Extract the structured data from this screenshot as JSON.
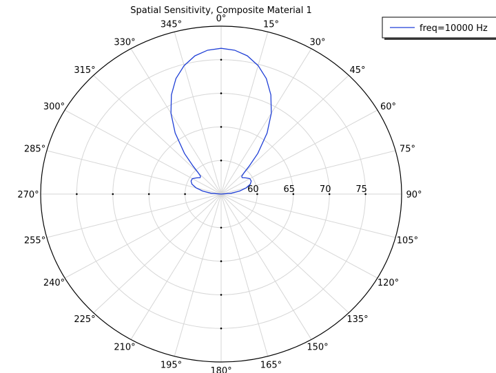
{
  "chart_data": {
    "type": "polar",
    "title": "Spatial Sensitivity, Composite Material 1",
    "angle_unit": "degrees",
    "angle_zero": "top",
    "angle_direction": "clockwise",
    "angle_ticks": [
      0,
      15,
      30,
      45,
      60,
      75,
      90,
      105,
      120,
      135,
      150,
      165,
      180,
      195,
      210,
      225,
      240,
      255,
      270,
      285,
      300,
      315,
      330,
      345
    ],
    "angle_tick_labels": [
      "0°",
      "15°",
      "30°",
      "45°",
      "60°",
      "75°",
      "90°",
      "105°",
      "120°",
      "135°",
      "150°",
      "165°",
      "180°",
      "195°",
      "210°",
      "225°",
      "240°",
      "255°",
      "270°",
      "285°",
      "300°",
      "315°",
      "330°",
      "345°"
    ],
    "radial_range": [
      55,
      80
    ],
    "radial_ticks": [
      60,
      65,
      70,
      75
    ],
    "radial_tick_labels": [
      "60",
      "65",
      "70",
      "75"
    ],
    "grid": true,
    "legend_position": "top-right",
    "series": [
      {
        "name": "freq=10000 Hz",
        "color": "#1f3fd6",
        "theta": [
          0,
          5,
          10,
          15,
          20,
          25,
          30,
          35,
          40,
          43,
          45,
          47,
          50,
          55,
          60,
          65,
          70,
          75,
          80,
          85,
          90,
          95,
          100,
          105,
          110
        ],
        "r": [
          76.7,
          76.5,
          75.9,
          74.8,
          73.3,
          71.3,
          68.9,
          66.1,
          62.9,
          60.7,
          59.5,
          58.9,
          58.8,
          59.2,
          59.6,
          59.6,
          59.3,
          58.6,
          57.6,
          56.4,
          55.0,
          55.0,
          55.0,
          55.0,
          55.0
        ],
        "symmetric_about_zero": true
      }
    ]
  }
}
